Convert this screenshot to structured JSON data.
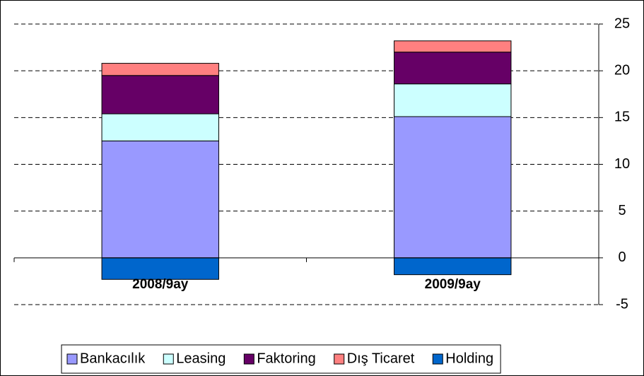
{
  "chart_data": {
    "type": "stacked_bar",
    "categories": [
      "2008/9ay",
      "2009/9ay"
    ],
    "series": [
      {
        "name": "Bankacılık",
        "color": "#9999ff",
        "values": [
          12.5,
          15.1
        ]
      },
      {
        "name": "Leasing",
        "color": "#ccffff",
        "values": [
          2.9,
          3.5
        ]
      },
      {
        "name": "Faktoring",
        "color": "#660066",
        "values": [
          4.1,
          3.4
        ]
      },
      {
        "name": "Dış Ticaret",
        "color": "#ff8080",
        "values": [
          1.3,
          1.2
        ]
      },
      {
        "name": "Holding",
        "color": "#0066cc",
        "values": [
          -2.3,
          -1.8
        ]
      }
    ],
    "ylim": [
      -5,
      25
    ],
    "yticks": [
      -5,
      0,
      5,
      10,
      15,
      20,
      25
    ],
    "grid": true,
    "legend": "bottom"
  }
}
